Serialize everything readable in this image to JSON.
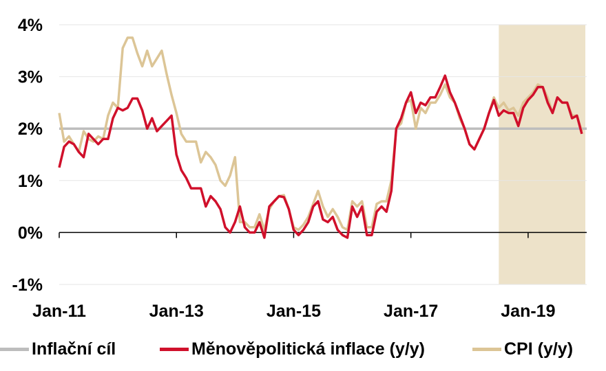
{
  "chart_data": {
    "type": "line",
    "x_ticks": [
      "Jan-11",
      "Jan-13",
      "Jan-15",
      "Jan-17",
      "Jan-19"
    ],
    "y_ticks": [
      "4%",
      "3%",
      "2%",
      "1%",
      "0%",
      "-1%"
    ],
    "ylim": [
      -1,
      4
    ],
    "x_start": "2011-01",
    "x_end": "2019-12",
    "forecast_shade": {
      "from": "2018-07",
      "to": "2019-12",
      "color": "#ede2c9"
    },
    "grid": "horizontal",
    "legend_position": "bottom",
    "series": [
      {
        "name": "Inflační cíl",
        "color": "#bdbdbd",
        "values": [
          2.0,
          2.0
        ]
      },
      {
        "name": "Měnověpolitická inflace (y/y)",
        "color": "#d0102b",
        "values": [
          1.25,
          1.65,
          1.75,
          1.7,
          1.55,
          1.45,
          1.9,
          1.8,
          1.7,
          1.8,
          1.8,
          2.2,
          2.4,
          2.35,
          2.4,
          2.58,
          2.58,
          2.35,
          2.0,
          2.2,
          1.95,
          2.05,
          2.15,
          2.25,
          1.5,
          1.2,
          1.05,
          0.85,
          0.85,
          0.85,
          0.5,
          0.7,
          0.6,
          0.45,
          0.1,
          0.0,
          0.2,
          0.5,
          0.1,
          0.0,
          0.0,
          0.2,
          -0.1,
          0.5,
          0.6,
          0.7,
          0.68,
          0.45,
          0.05,
          -0.05,
          0.05,
          0.2,
          0.5,
          0.6,
          0.25,
          0.2,
          0.3,
          0.05,
          -0.05,
          -0.1,
          0.5,
          0.3,
          0.5,
          -0.05,
          -0.05,
          0.4,
          0.5,
          0.4,
          0.8,
          2.0,
          2.2,
          2.5,
          2.7,
          2.3,
          2.5,
          2.45,
          2.6,
          2.6,
          2.8,
          3.02,
          2.7,
          2.5,
          2.25,
          2.0,
          1.7,
          1.6,
          1.8,
          2.0,
          2.3,
          2.55,
          2.25,
          2.35,
          2.3,
          2.3,
          2.05,
          2.4,
          2.55,
          2.65,
          2.8,
          2.8,
          2.5,
          2.3,
          2.6,
          2.5,
          2.5,
          2.2,
          2.25,
          1.9
        ]
      },
      {
        "name": "CPI (y/y)",
        "color": "#dcc596",
        "values": [
          2.3,
          1.75,
          1.85,
          1.7,
          1.55,
          1.95,
          1.8,
          1.75,
          1.85,
          1.8,
          2.25,
          2.5,
          2.4,
          3.55,
          3.75,
          3.75,
          3.45,
          3.2,
          3.5,
          3.2,
          3.35,
          3.5,
          3.05,
          2.65,
          2.3,
          1.9,
          1.75,
          1.75,
          1.75,
          1.35,
          1.55,
          1.45,
          1.3,
          1.0,
          0.9,
          1.1,
          1.45,
          0.2,
          0.2,
          0.1,
          0.1,
          0.35,
          0.05,
          0.45,
          0.6,
          0.7,
          0.72,
          0.45,
          0.1,
          0.05,
          0.15,
          0.3,
          0.55,
          0.8,
          0.5,
          0.3,
          0.45,
          0.3,
          0.1,
          0.05,
          0.6,
          0.5,
          0.6,
          0.1,
          0.1,
          0.55,
          0.6,
          0.6,
          1.0,
          2.0,
          2.1,
          2.5,
          2.55,
          2.0,
          2.4,
          2.3,
          2.5,
          2.5,
          2.65,
          2.85,
          2.6,
          2.5,
          2.2,
          2.0,
          1.7,
          1.6,
          1.8,
          2.0,
          2.3,
          2.6,
          2.4,
          2.5,
          2.35,
          2.4,
          2.25,
          2.5,
          2.6,
          2.7,
          2.85,
          2.8,
          2.6,
          2.3,
          2.6,
          2.5,
          2.5,
          2.25,
          2.25,
          1.95
        ]
      }
    ]
  }
}
